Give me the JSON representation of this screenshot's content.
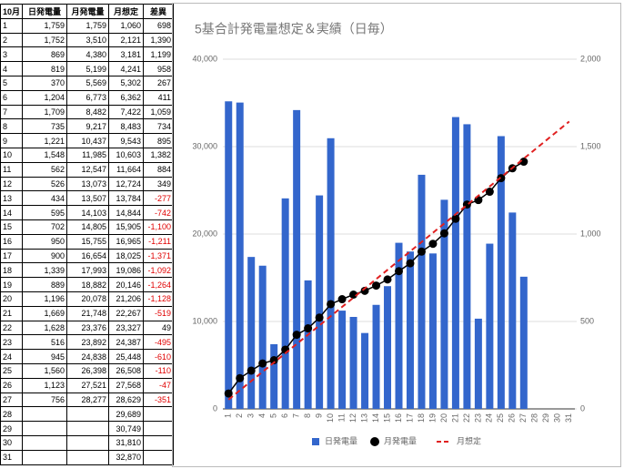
{
  "table": {
    "header": [
      "10月",
      "日発電量",
      "月発電量",
      "月想定",
      "差異"
    ],
    "rows": [
      [
        "1",
        "1,759",
        "1,759",
        "1,060",
        "698"
      ],
      [
        "2",
        "1,752",
        "3,510",
        "2,121",
        "1,390"
      ],
      [
        "3",
        "869",
        "4,380",
        "3,181",
        "1,199"
      ],
      [
        "4",
        "819",
        "5,199",
        "4,241",
        "958"
      ],
      [
        "5",
        "370",
        "5,569",
        "5,302",
        "267"
      ],
      [
        "6",
        "1,204",
        "6,773",
        "6,362",
        "411"
      ],
      [
        "7",
        "1,709",
        "8,482",
        "7,422",
        "1,059"
      ],
      [
        "8",
        "735",
        "9,217",
        "8,483",
        "734"
      ],
      [
        "9",
        "1,221",
        "10,437",
        "9,543",
        "895"
      ],
      [
        "10",
        "1,548",
        "11,985",
        "10,603",
        "1,382"
      ],
      [
        "11",
        "562",
        "12,547",
        "11,664",
        "884"
      ],
      [
        "12",
        "526",
        "13,073",
        "12,724",
        "349"
      ],
      [
        "13",
        "434",
        "13,507",
        "13,784",
        "-277"
      ],
      [
        "14",
        "595",
        "14,103",
        "14,844",
        "-742"
      ],
      [
        "15",
        "702",
        "14,805",
        "15,905",
        "-1,100"
      ],
      [
        "16",
        "950",
        "15,755",
        "16,965",
        "-1,211"
      ],
      [
        "17",
        "900",
        "16,654",
        "18,025",
        "-1,371"
      ],
      [
        "18",
        "1,339",
        "17,993",
        "19,086",
        "-1,092"
      ],
      [
        "19",
        "889",
        "18,882",
        "20,146",
        "-1,264"
      ],
      [
        "20",
        "1,196",
        "20,078",
        "21,206",
        "-1,128"
      ],
      [
        "21",
        "1,669",
        "21,748",
        "22,267",
        "-519"
      ],
      [
        "22",
        "1,628",
        "23,376",
        "23,327",
        "49"
      ],
      [
        "23",
        "516",
        "23,892",
        "24,387",
        "-495"
      ],
      [
        "24",
        "945",
        "24,838",
        "25,448",
        "-610"
      ],
      [
        "25",
        "1,560",
        "26,398",
        "26,508",
        "-110"
      ],
      [
        "26",
        "1,123",
        "27,521",
        "27,568",
        "-47"
      ],
      [
        "27",
        "756",
        "28,277",
        "28,629",
        "-351"
      ],
      [
        "28",
        null,
        null,
        "29,689",
        null
      ],
      [
        "29",
        null,
        null,
        "30,749",
        null
      ],
      [
        "30",
        null,
        null,
        "31,810",
        null
      ],
      [
        "31",
        null,
        null,
        "32,870",
        null
      ]
    ]
  },
  "chart_data": {
    "type": "combo",
    "title": "5基合計発電量想定＆実績（日毎）",
    "categories": [
      "1",
      "2",
      "3",
      "4",
      "5",
      "6",
      "7",
      "8",
      "9",
      "10",
      "11",
      "12",
      "13",
      "14",
      "15",
      "16",
      "17",
      "18",
      "19",
      "20",
      "21",
      "22",
      "23",
      "24",
      "25",
      "26",
      "27",
      "28",
      "29",
      "30",
      "31"
    ],
    "ylim": [
      0,
      40000
    ],
    "yticks": [
      0,
      {
        "value": 10000,
        "label": "10,000"
      },
      {
        "value": 20000,
        "label": "20,000"
      },
      {
        "value": 30000,
        "label": "30,000"
      },
      {
        "value": 40000,
        "label": "40,000"
      }
    ],
    "y2lim": [
      0,
      2000
    ],
    "y2ticks": [
      0,
      500,
      {
        "value": 1000,
        "label": "1,000"
      },
      {
        "value": 1500,
        "label": "1,500"
      },
      {
        "value": 2000,
        "label": "2,000"
      }
    ],
    "grid": true,
    "legend": "bottom",
    "series": [
      {
        "name": "日発電量",
        "type": "bar",
        "axis": "y2",
        "color": "#3366cc",
        "values": [
          1759,
          1752,
          869,
          819,
          370,
          1204,
          1709,
          735,
          1221,
          1548,
          562,
          526,
          434,
          595,
          702,
          950,
          900,
          1339,
          889,
          1196,
          1669,
          1628,
          516,
          945,
          1560,
          1123,
          756,
          null,
          null,
          null,
          null
        ]
      },
      {
        "name": "月発電量",
        "type": "line",
        "axis": "y",
        "color": "#000000",
        "values": [
          1759,
          3510,
          4380,
          5199,
          5569,
          6773,
          8482,
          9217,
          10437,
          11985,
          12547,
          13073,
          13507,
          14103,
          14805,
          15755,
          16654,
          17993,
          18882,
          20078,
          21748,
          23376,
          23892,
          24838,
          26398,
          27521,
          28277,
          null,
          null,
          null,
          null
        ]
      },
      {
        "name": "月想定",
        "type": "dashed",
        "axis": "y",
        "color": "#e02020",
        "values": [
          1060,
          2121,
          3181,
          4241,
          5302,
          6362,
          7422,
          8483,
          9543,
          10603,
          11664,
          12724,
          13784,
          14844,
          15905,
          16965,
          18025,
          19086,
          20146,
          21206,
          22267,
          23327,
          24387,
          25448,
          26508,
          27568,
          28629,
          29689,
          30749,
          31810,
          32870
        ]
      }
    ]
  }
}
